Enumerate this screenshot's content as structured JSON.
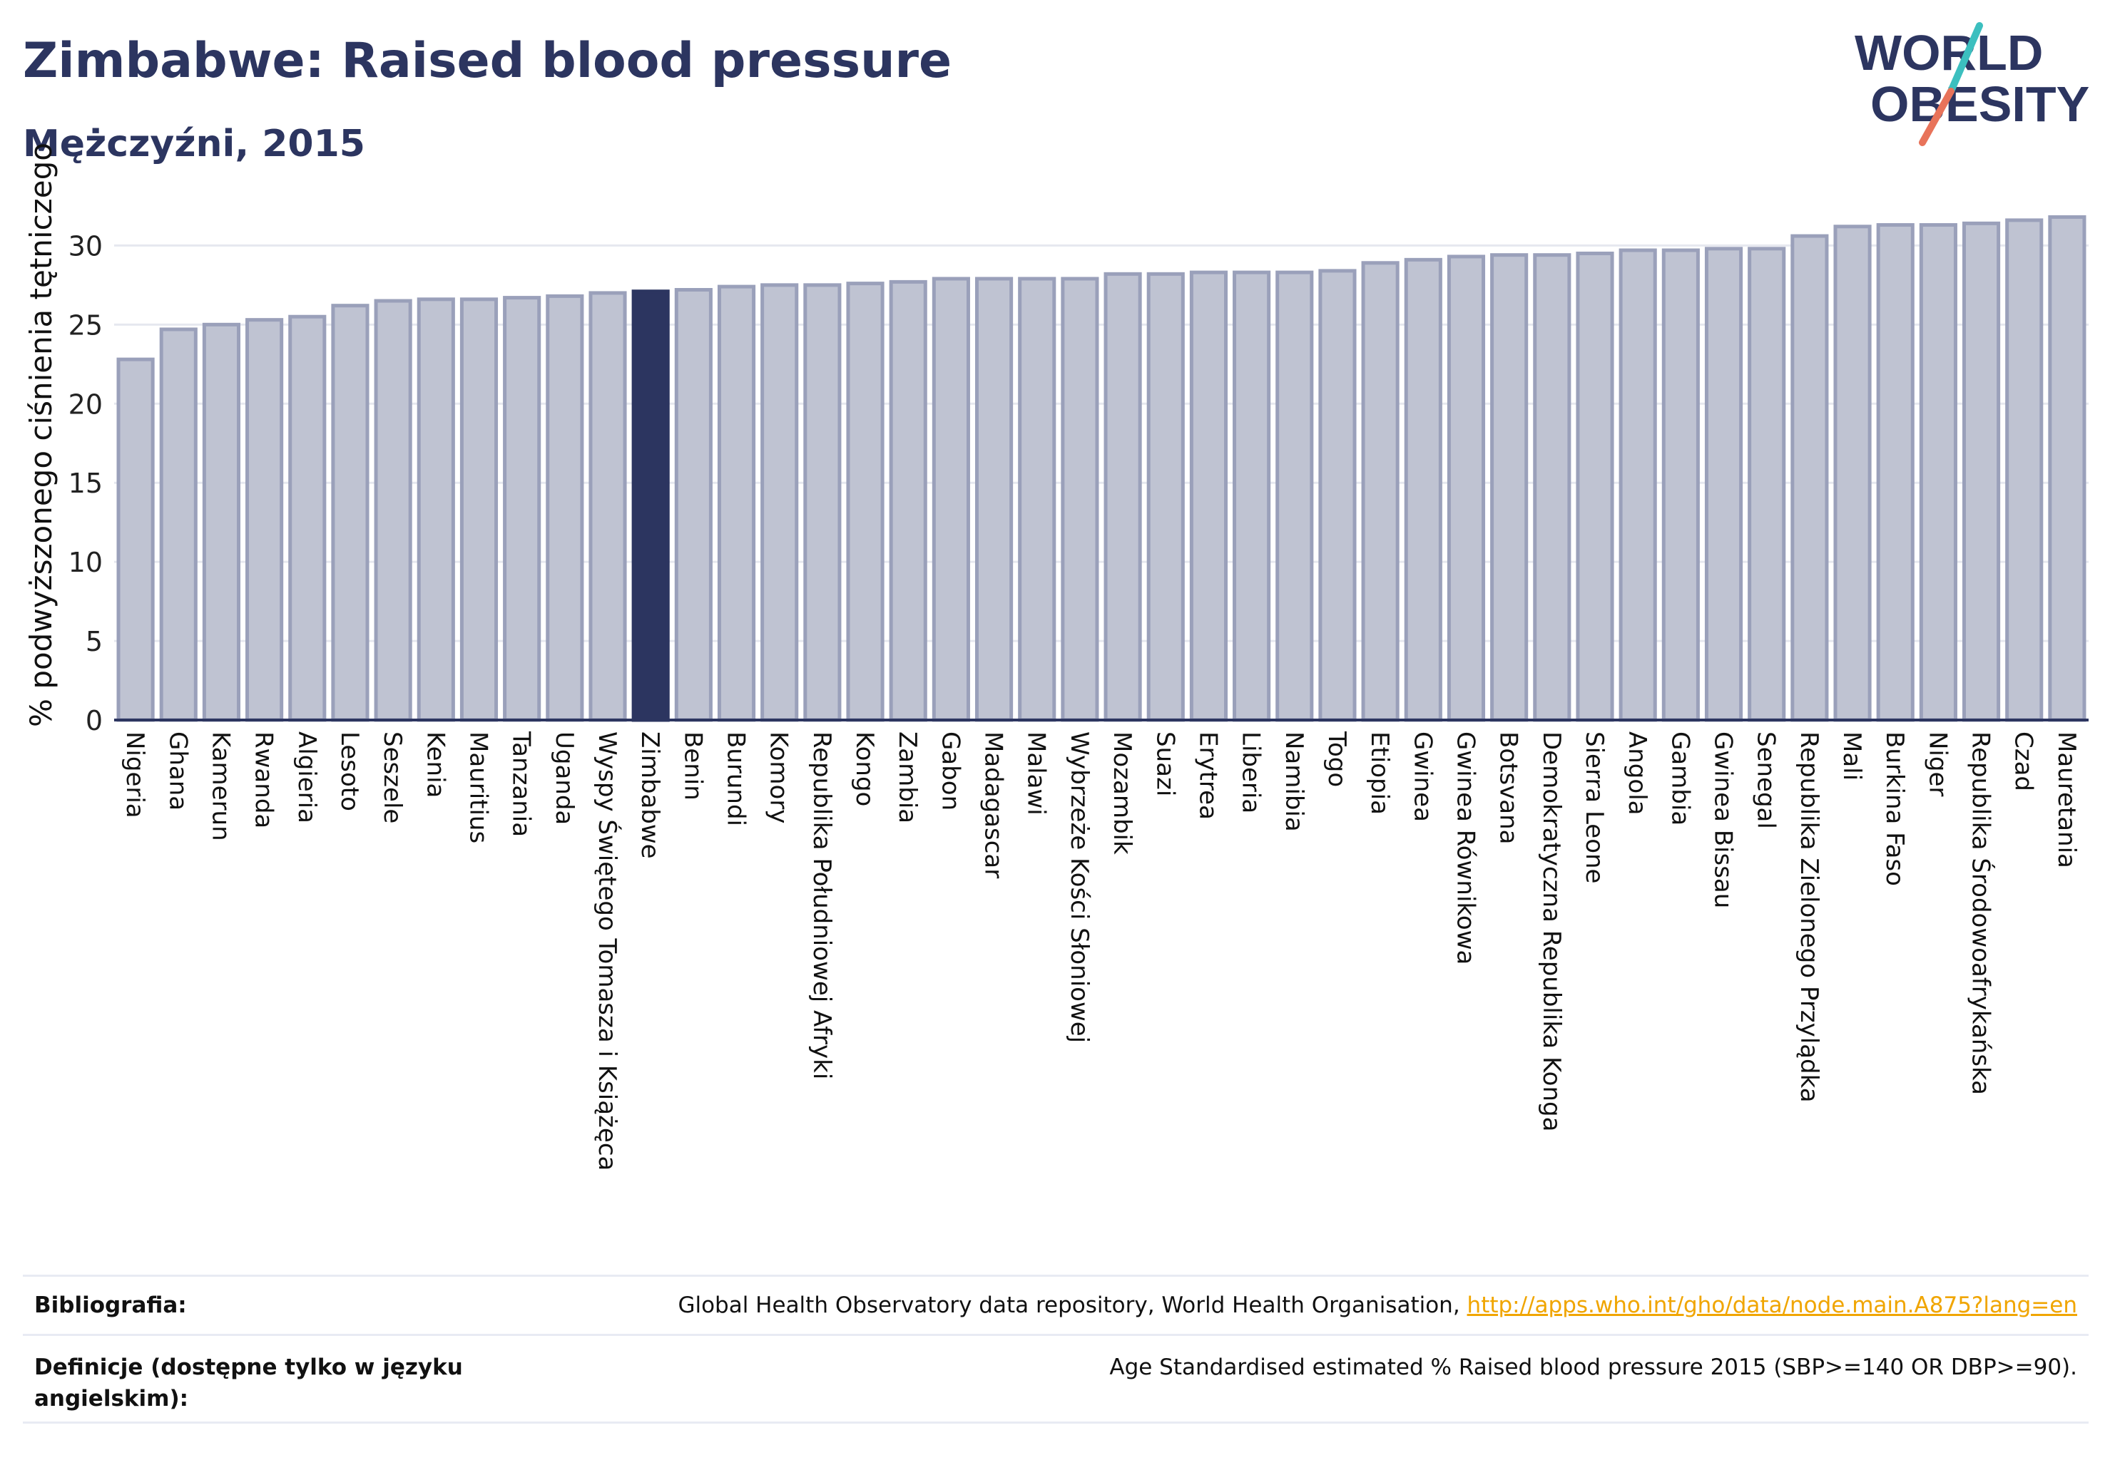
{
  "header": {
    "title": "Zimbabwe: Raised blood pressure",
    "subtitle": "Mężczyźni, 2015"
  },
  "logo": {
    "line1": "WORLD",
    "line2": "OBESITY",
    "colors": {
      "text": "#2c3560",
      "slash_teal": "#3cbfbf",
      "slash_coral": "#e8735a"
    }
  },
  "colors": {
    "bar_fill": "#bfc3d2",
    "bar_stroke": "#9aa0ba",
    "highlight_fill": "#2c3560",
    "axis": "#2c3560",
    "grid": "#e6e8ef",
    "link": "#f0a500"
  },
  "chart_data": {
    "type": "bar",
    "ylabel": "% podwyższonego ciśnienia tętniczego",
    "ylim": [
      0,
      32
    ],
    "yticks": [
      0,
      5,
      10,
      15,
      20,
      25,
      30
    ],
    "grid": true,
    "highlight": "Zimbabwe",
    "categories": [
      "Nigeria",
      "Ghana",
      "Kamerun",
      "Rwanda",
      "Algieria",
      "Lesoto",
      "Seszele",
      "Kenia",
      "Mauritius",
      "Tanzania",
      "Uganda",
      "Wyspy Świętego Tomasza i Książęca",
      "Zimbabwe",
      "Benin",
      "Burundi",
      "Komory",
      "Republika Południowej Afryki",
      "Kongo",
      "Zambia",
      "Gabon",
      "Madagascar",
      "Malawi",
      "Wybrzeże Kości Słoniowej",
      "Mozambik",
      "Suazi",
      "Erytrea",
      "Liberia",
      "Namibia",
      "Togo",
      "Etiopia",
      "Gwinea",
      "Gwinea Równikowa",
      "Botsvana",
      "Demokratyczna Republika Konga",
      "Sierra Leone",
      "Angola",
      "Gambia",
      "Gwinea Bissau",
      "Senegal",
      "Republika Zielonego Przylądka",
      "Mali",
      "Burkina Faso",
      "Niger",
      "Republika Środowoafrykańska",
      "Czad",
      "Mauretania"
    ],
    "values": [
      22.8,
      24.7,
      25.0,
      25.3,
      25.5,
      26.2,
      26.5,
      26.6,
      26.6,
      26.7,
      26.8,
      27.0,
      27.1,
      27.2,
      27.4,
      27.5,
      27.5,
      27.6,
      27.7,
      27.9,
      27.9,
      27.9,
      27.9,
      28.2,
      28.2,
      28.3,
      28.3,
      28.3,
      28.4,
      28.9,
      29.1,
      29.3,
      29.4,
      29.4,
      29.5,
      29.7,
      29.7,
      29.8,
      29.8,
      30.6,
      31.2,
      31.3,
      31.3,
      31.4,
      31.6,
      31.8
    ]
  },
  "footer": {
    "bibliography_label": "Bibliografia:",
    "bibliography_text": "Global Health Observatory data repository, World Health Organisation, ",
    "bibliography_link": "http://apps.who.int/gho/data/node.main.A875?lang=en",
    "definitions_label": "Definicje (dostępne tylko w języku angielskim):",
    "definitions_text": "Age Standardised estimated % Raised blood pressure 2015 (SBP>=140 OR DBP>=90)."
  }
}
